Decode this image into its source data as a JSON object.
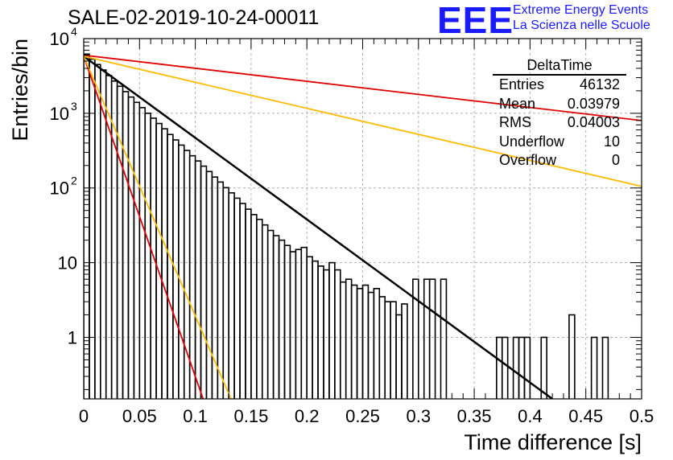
{
  "title": "SALE-02-2019-10-24-00011",
  "logo": {
    "mark": "EEE",
    "line1": "Extreme Energy Events",
    "line2": "La Scienza nelle Scuole",
    "color": "#1a1aff"
  },
  "stats": {
    "title": "DeltaTime",
    "rows": [
      {
        "label": "Entries",
        "value": "46132"
      },
      {
        "label": "Mean",
        "value": "0.03979"
      },
      {
        "label": "RMS",
        "value": "0.04003"
      },
      {
        "label": "Underflow",
        "value": "10"
      },
      {
        "label": "Overflow",
        "value": "0"
      }
    ]
  },
  "colors": {
    "fit": "#000000",
    "red": "#e00000",
    "orange": "#ffbb00",
    "grid": "#b0b0b0"
  },
  "chart_data": {
    "type": "line",
    "xlabel": "Time difference [s]",
    "ylabel": "Entries/bin",
    "xlim": [
      0,
      0.5
    ],
    "ylim": [
      0.15,
      10000
    ],
    "yscale": "log",
    "grid": true,
    "x_ticks": [
      "0",
      "0.05",
      "0.1",
      "0.15",
      "0.2",
      "0.25",
      "0.3",
      "0.35",
      "0.4",
      "0.45",
      "0.5"
    ],
    "y_ticks": [
      {
        "value": 1,
        "label": "1"
      },
      {
        "value": 10,
        "label": "10"
      },
      {
        "value": 100,
        "label": "10",
        "exp": "2"
      },
      {
        "value": 1000,
        "label": "10",
        "exp": "3"
      },
      {
        "value": 10000,
        "label": "10",
        "exp": "4"
      }
    ],
    "histogram": {
      "bin_width": 0.005,
      "values": [
        6200,
        5300,
        4500,
        3800,
        3200,
        2700,
        2300,
        1950,
        1650,
        1400,
        1190,
        1000,
        860,
        730,
        620,
        520,
        440,
        375,
        318,
        270,
        230,
        196,
        166,
        140,
        120,
        101,
        86,
        73,
        62,
        52,
        44,
        38,
        32,
        27,
        23,
        20,
        17,
        14,
        15,
        16,
        12,
        10.5,
        9,
        8,
        10,
        8,
        5.5,
        6,
        5,
        4.5,
        5,
        4,
        4.5,
        3.5,
        3,
        3,
        2,
        2.8,
        0,
        6,
        0,
        6,
        6,
        0,
        6,
        0,
        0,
        0,
        0,
        0,
        0,
        0,
        0,
        0,
        1,
        1,
        0,
        1,
        1,
        1,
        0,
        0,
        1,
        0,
        0,
        0,
        0,
        2,
        0,
        0,
        0,
        1,
        0,
        1,
        0,
        0,
        0,
        0,
        0,
        0
      ]
    },
    "series": [
      {
        "role": "fit",
        "color": "#000000",
        "x": [
          0,
          0.42
        ],
        "y": [
          5800,
          0.15
        ]
      },
      {
        "role": "upper",
        "color": "#e00000",
        "x": [
          0,
          0.5
        ],
        "y": [
          6000,
          800
        ]
      },
      {
        "role": "upper",
        "color": "#ffbb00",
        "x": [
          0,
          0.5
        ],
        "y": [
          5800,
          105
        ]
      },
      {
        "role": "lower",
        "color": "#e00000",
        "x": [
          0,
          0.107
        ],
        "y": [
          5800,
          0.15
        ]
      },
      {
        "role": "lower",
        "color": "#ffbb00",
        "x": [
          0,
          0.132
        ],
        "y": [
          5800,
          0.15
        ]
      }
    ]
  }
}
